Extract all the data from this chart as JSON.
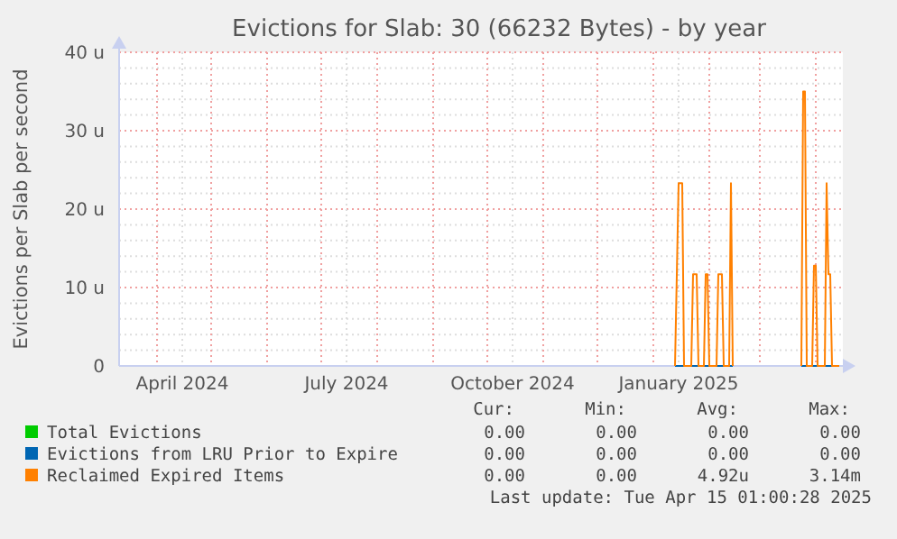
{
  "chart_data": {
    "type": "line",
    "title": "Evictions for Slab: 30 (66232 Bytes) - by year",
    "ylabel": "Evictions per Slab per second",
    "x": [
      "2025-01-13",
      "2025-01-15",
      "2025-01-17",
      "2025-01-18",
      "2025-01-22",
      "2025-01-23",
      "2025-01-25",
      "2025-01-26",
      "2025-01-29",
      "2025-01-30",
      "2025-01-31",
      "2025-02-01",
      "2025-02-05",
      "2025-02-06",
      "2025-02-08",
      "2025-02-09",
      "2025-02-12",
      "2025-02-13",
      "2025-02-14",
      "2025-02-20",
      "2025-03-24",
      "2025-03-25",
      "2025-03-26",
      "2025-03-27",
      "2025-03-30",
      "2025-03-31",
      "2025-04-01",
      "2025-04-02",
      "2025-04-06",
      "2025-04-07",
      "2025-04-08",
      "2025-04-09",
      "2025-04-10",
      "2025-04-14"
    ],
    "series": [
      {
        "name": "Total Evictions",
        "color": "#00cc00",
        "values": [
          null,
          null,
          null,
          null,
          null,
          null,
          null,
          null,
          null,
          null,
          null,
          null,
          null,
          null,
          null,
          null,
          null,
          null,
          null,
          null,
          null,
          null,
          null,
          null,
          null,
          null,
          null,
          null,
          null,
          null,
          null,
          null,
          null,
          null
        ]
      },
      {
        "name": "Evictions from LRU Prior to Expire",
        "color": "#0066b3",
        "values": [
          0,
          0,
          0,
          0,
          0,
          0,
          0,
          0,
          0,
          0,
          0,
          0,
          0,
          0,
          0,
          0,
          0,
          0,
          0,
          null,
          0,
          0,
          0,
          0,
          0,
          0,
          0,
          0,
          0,
          0,
          0,
          0,
          0,
          0
        ]
      },
      {
        "name": "Reclaimed Expired Items",
        "color": "#ff8000",
        "values": [
          0,
          23.3,
          23.3,
          0,
          0,
          11.7,
          11.7,
          0,
          0,
          11.7,
          11.7,
          0,
          0,
          11.7,
          11.7,
          0,
          0,
          23.3,
          0,
          null,
          0,
          35,
          35,
          0,
          0,
          12.8,
          12.8,
          0,
          0,
          23.3,
          11.7,
          11.7,
          0,
          0
        ]
      }
    ],
    "xlim": [
      "2024-03-11",
      "2025-04-16"
    ],
    "xticks": [
      {
        "value": "2024-04-01",
        "label": null
      },
      {
        "value": "2024-04-15",
        "label": "April 2024"
      },
      {
        "value": "2024-05-01",
        "label": null
      },
      {
        "value": "2024-06-01",
        "label": null
      },
      {
        "value": "2024-07-01",
        "label": null
      },
      {
        "value": "2024-07-15",
        "label": "July 2024"
      },
      {
        "value": "2024-08-01",
        "label": null
      },
      {
        "value": "2024-09-01",
        "label": null
      },
      {
        "value": "2024-10-01",
        "label": null
      },
      {
        "value": "2024-10-15",
        "label": "October 2024"
      },
      {
        "value": "2024-11-01",
        "label": null
      },
      {
        "value": "2024-12-01",
        "label": null
      },
      {
        "value": "2025-01-01",
        "label": null
      },
      {
        "value": "2025-01-15",
        "label": "January 2025"
      },
      {
        "value": "2025-02-01",
        "label": null
      },
      {
        "value": "2025-03-01",
        "label": null
      },
      {
        "value": "2025-04-01",
        "label": null
      }
    ],
    "ylim": [
      0,
      40
    ],
    "yticks": [
      {
        "value": 0,
        "label": "0"
      },
      {
        "value": 2,
        "label": null
      },
      {
        "value": 4,
        "label": null
      },
      {
        "value": 6,
        "label": null
      },
      {
        "value": 8,
        "label": null
      },
      {
        "value": 10,
        "label": "10 u"
      },
      {
        "value": 12,
        "label": null
      },
      {
        "value": 14,
        "label": null
      },
      {
        "value": 16,
        "label": null
      },
      {
        "value": 18,
        "label": null
      },
      {
        "value": 20,
        "label": "20 u"
      },
      {
        "value": 22,
        "label": null
      },
      {
        "value": 24,
        "label": null
      },
      {
        "value": 26,
        "label": null
      },
      {
        "value": 28,
        "label": null
      },
      {
        "value": 30,
        "label": "30 u"
      },
      {
        "value": 32,
        "label": null
      },
      {
        "value": 34,
        "label": null
      },
      {
        "value": 36,
        "label": null
      },
      {
        "value": 38,
        "label": null
      },
      {
        "value": 40,
        "label": "40 u"
      }
    ],
    "grid": true,
    "legend": "bottom",
    "line_style": "solid",
    "annotations": [
      "Cur:",
      "Min:",
      "Avg:",
      "Max:",
      "0.00",
      "0.00",
      "0.00",
      "0.00",
      "0.00",
      "0.00",
      "0.00",
      "0.00",
      "0.00",
      "0.00",
      "4.92u",
      "3.14m",
      "Last update: Tue Apr 15 01:00:28 2025"
    ]
  }
}
